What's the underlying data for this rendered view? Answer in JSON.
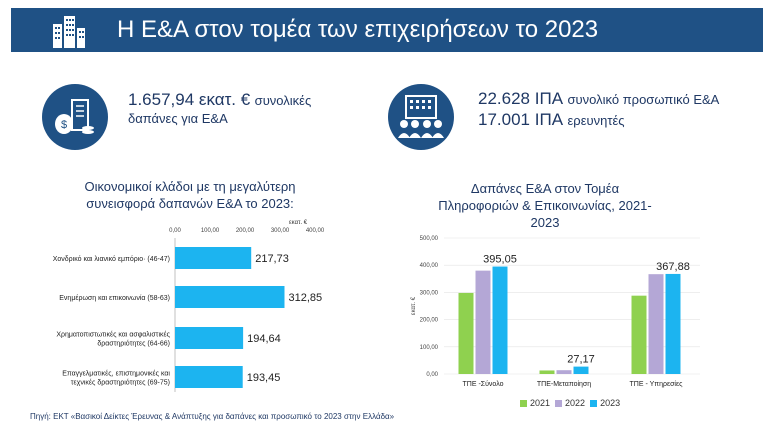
{
  "header": {
    "title": "Η Ε&Α στον τομέα των επιχειρήσεων το 2023"
  },
  "kpi_left": {
    "line1_value": "1.657,94 εκατ. €",
    "line1_text": "συνολικές",
    "line2": "δαπάνες για Ε&Α"
  },
  "kpi_right": {
    "line1_value": "22.628 ΙΠΑ",
    "line1_text": "συνολικό προσωπικό Ε&Α",
    "line2_value": "17.001 ΙΠΑ",
    "line2_text": "ερευνητές"
  },
  "source": "Πηγή: ΕΚΤ «Βασικοί Δείκτες Έρευνας & Ανάπτυξης για δαπάνες και προσωπικό το 2023 στην Ελλάδα»",
  "colors": {
    "brand": "#1f5185",
    "bar_cyan": "#1cb4f0",
    "y2021": "#8fd14f",
    "y2022": "#b4a7d6",
    "y2023": "#1cb4f0"
  },
  "chart_data": [
    {
      "type": "bar",
      "orientation": "horizontal",
      "title": "Οικονομικοί κλάδοι με τη μεγαλύτερη συνεισφορά δαπανών Ε&Α το 2023:",
      "unit_label": "εκατ. €",
      "xlim": [
        0,
        400
      ],
      "ticks": [
        "0,00",
        "100,00",
        "200,00",
        "300,00",
        "400,00"
      ],
      "tick_values": [
        0,
        100,
        200,
        300,
        400
      ],
      "categories": [
        [
          "Χονδρικό και λιανικό εμπόριο· (46-47)"
        ],
        [
          "Ενημέρωση και επικοινωνία (58-63)"
        ],
        [
          "Χρηματοπιστωτικές και ασφαλιστικές",
          "δραστηριότητες (64-66)"
        ],
        [
          "Επαγγελματικές, επιστημονικές και",
          "τεχνικές δραστηριότητες (69-75)"
        ]
      ],
      "values": [
        217.73,
        312.85,
        194.64,
        193.45
      ],
      "value_labels": [
        "217,73",
        "312,85",
        "194,64",
        "193,45"
      ]
    },
    {
      "type": "bar",
      "orientation": "vertical",
      "title": "Δαπάνες Ε&Α στον Τομέα Πληροφοριών & Επικοινωνίας, 2021- 2023",
      "ylabel": "εκατ. €",
      "ylim": [
        0,
        500
      ],
      "ticks": [
        "0,00",
        "100,00",
        "200,00",
        "300,00",
        "400,00",
        "500,00"
      ],
      "tick_values": [
        0,
        100,
        200,
        300,
        400,
        500
      ],
      "categories": [
        "ΤΠΕ -Σύνολο",
        "ΤΠΕ-Μεταποίηση",
        "ΤΠΕ - Υπηρεσίες"
      ],
      "series": [
        {
          "name": "2021",
          "values": [
            298,
            13,
            288
          ]
        },
        {
          "name": "2022",
          "values": [
            380,
            14,
            367
          ]
        },
        {
          "name": "2023",
          "values": [
            395.05,
            27.17,
            367.88
          ]
        }
      ],
      "data_labels": [
        "395,05",
        "27,17",
        "367,88"
      ]
    }
  ]
}
